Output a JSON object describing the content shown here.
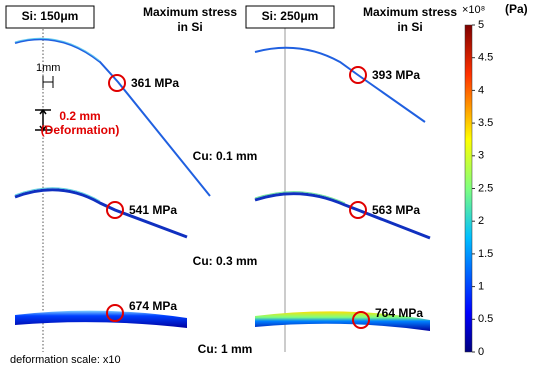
{
  "headers": {
    "left_box": "Si: 150μm",
    "right_box": "Si: 250μm",
    "stress_title_line1": "Maximum stress",
    "stress_title_line2": "in Si"
  },
  "panels": [
    {
      "stress": "361 MPa"
    },
    {
      "stress": "393 MPa"
    },
    {
      "stress": "541 MPa"
    },
    {
      "stress": "563 MPa"
    },
    {
      "stress": "674 MPa"
    },
    {
      "stress": "764 MPa"
    }
  ],
  "cu_labels": [
    "Cu: 0.1 mm",
    "Cu: 0.3 mm",
    "Cu: 1 mm"
  ],
  "annotations": {
    "scale_bar": "1mm",
    "deformation": "0.2 mm",
    "deformation_note": "(Deformation)",
    "deformation_scale": "deformation scale: x10"
  },
  "colorbar": {
    "exponent": "×10⁸",
    "unit": "(Pa)",
    "range": [
      0,
      5
    ],
    "ticks": [
      0,
      0.5,
      1,
      1.5,
      2,
      2.5,
      3,
      3.5,
      4,
      4.5,
      5
    ]
  }
}
